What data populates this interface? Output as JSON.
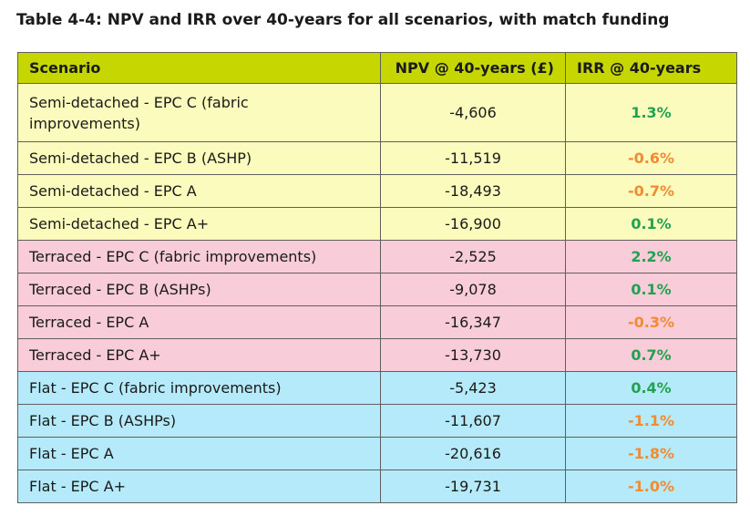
{
  "caption": "Table 4-4: NPV and IRR over 40-years for all scenarios, with match funding",
  "columns": {
    "scenario": "Scenario",
    "npv": "NPV @ 40-years (£)",
    "irr": "IRR @ 40-years"
  },
  "colors": {
    "header_bg": "#c5d600",
    "semi_detached_bg": "#fbfbbd",
    "terraced_bg": "#f8ccd8",
    "flat_bg": "#b5eafa",
    "irr_positive": "#21a250",
    "irr_negative": "#f28b32"
  },
  "rows": [
    {
      "scenario": "Semi-detached - EPC C (fabric improvements)",
      "npv": "-4,606",
      "irr": "1.3%"
    },
    {
      "scenario": "Semi-detached - EPC B (ASHP)",
      "npv": "-11,519",
      "irr": "-0.6%"
    },
    {
      "scenario": "Semi-detached - EPC A",
      "npv": "-18,493",
      "irr": "-0.7%"
    },
    {
      "scenario": "Semi-detached - EPC A+",
      "npv": "-16,900",
      "irr": "0.1%"
    },
    {
      "scenario": "Terraced - EPC C (fabric improvements)",
      "npv": "-2,525",
      "irr": "2.2%"
    },
    {
      "scenario": "Terraced - EPC B (ASHPs)",
      "npv": "-9,078",
      "irr": "0.1%"
    },
    {
      "scenario": "Terraced - EPC A",
      "npv": "-16,347",
      "irr": "-0.3%"
    },
    {
      "scenario": "Terraced - EPC A+",
      "npv": "-13,730",
      "irr": "0.7%"
    },
    {
      "scenario": "Flat - EPC C (fabric improvements)",
      "npv": "-5,423",
      "irr": "0.4%"
    },
    {
      "scenario": "Flat - EPC B (ASHPs)",
      "npv": "-11,607",
      "irr": "-1.1%"
    },
    {
      "scenario": "Flat - EPC A",
      "npv": "-20,616",
      "irr": "-1.8%"
    },
    {
      "scenario": "Flat - EPC A+",
      "npv": "-19,731",
      "irr": "-1.0%"
    }
  ]
}
